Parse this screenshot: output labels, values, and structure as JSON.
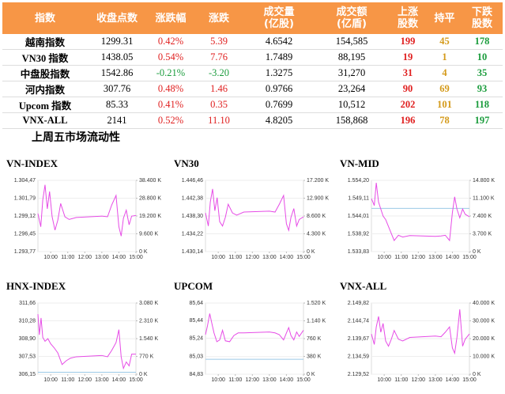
{
  "table": {
    "header": [
      [
        "指数"
      ],
      [
        "收盘点数"
      ],
      [
        "涨跌幅"
      ],
      [
        "涨跌"
      ],
      [
        "成交量",
        "(亿股)"
      ],
      [
        "成交额",
        "(亿盾)"
      ],
      [
        "上涨",
        "股数"
      ],
      [
        "持平"
      ],
      [
        "下跌",
        "股数"
      ]
    ],
    "rows": [
      [
        "越南指数",
        "1299.31",
        "0.42%",
        "5.39",
        "4.6542",
        "154,585",
        "199",
        "45",
        "178"
      ],
      [
        "VN30 指数",
        "1438.05",
        "0.54%",
        "7.76",
        "1.7489",
        "88,195",
        "19",
        "1",
        "10"
      ],
      [
        "中盘股指数",
        "1542.86",
        "-0.21%",
        "-3.20",
        "1.3275",
        "31,270",
        "31",
        "4",
        "35"
      ],
      [
        "河内指数",
        "307.76",
        "0.48%",
        "1.46",
        "0.9766",
        "23,264",
        "90",
        "69",
        "93"
      ],
      [
        "Upcom 指数",
        "85.33",
        "0.41%",
        "0.35",
        "0.7699",
        "10,512",
        "202",
        "101",
        "118"
      ],
      [
        "VNX-ALL",
        "2141",
        "0.52%",
        "11.10",
        "4.8205",
        "158,868",
        "196",
        "78",
        "197"
      ]
    ],
    "header_color": "#f79646",
    "up_color": "#e02020",
    "down_color": "#1a9c3c",
    "flat_color": "#d49a1a"
  },
  "heading": "上周五市场流动性",
  "chart_data": [
    {
      "type": "line",
      "title": "VN-INDEX",
      "color": "#e64ce6",
      "xlim": [
        555,
        900
      ],
      "ylim": [
        1293.77,
        1304.47
      ],
      "y2lim": [
        0,
        38400
      ],
      "x": [
        555,
        565,
        572,
        580,
        588,
        596,
        605,
        615,
        625,
        635,
        650,
        665,
        690,
        780,
        800,
        815,
        830,
        840,
        848,
        856,
        866,
        876,
        885,
        900
      ],
      "values": [
        1299.5,
        1297.5,
        1301.5,
        1303.8,
        1300.2,
        1302.8,
        1299,
        1297,
        1298.5,
        1301,
        1299,
        1298.6,
        1298.9,
        1299.1,
        1299,
        1300.8,
        1302.2,
        1297.5,
        1296.1,
        1298.8,
        1300,
        1297.8,
        1299.1,
        1299.2
      ],
      "yticks": [
        {
          "value": 1293.77,
          "label": "1.293,77"
        },
        {
          "value": 1296.45,
          "label": "1.296,45"
        },
        {
          "value": 1299.12,
          "label": "1.299,12"
        },
        {
          "value": 1301.79,
          "label": "1.301,79"
        },
        {
          "value": 1304.47,
          "label": "1.304,47"
        }
      ],
      "y2ticks": [
        {
          "value": 0,
          "label": "0 K"
        },
        {
          "value": 9600,
          "label": "9.600 K"
        },
        {
          "value": 19200,
          "label": "19.200 K"
        },
        {
          "value": 28800,
          "label": "28.800 K"
        },
        {
          "value": 38400,
          "label": "38.400 K"
        }
      ],
      "xticks": [
        {
          "value": 600,
          "label": "10:00"
        },
        {
          "value": 660,
          "label": "11:00"
        },
        {
          "value": 720,
          "label": "12:00"
        },
        {
          "value": 780,
          "label": "13:00"
        },
        {
          "value": 840,
          "label": "14:00"
        },
        {
          "value": 900,
          "label": "15:00"
        }
      ]
    },
    {
      "type": "line",
      "title": "VN30",
      "color": "#e64ce6",
      "xlim": [
        555,
        900
      ],
      "ylim": [
        1430.14,
        1446.46
      ],
      "y2lim": [
        0,
        17200
      ],
      "x": [
        555,
        565,
        572,
        580,
        588,
        596,
        605,
        615,
        625,
        635,
        650,
        665,
        690,
        780,
        800,
        815,
        830,
        840,
        848,
        856,
        866,
        876,
        885,
        900
      ],
      "values": [
        1439,
        1436,
        1441.5,
        1444.5,
        1439.5,
        1442.5,
        1437,
        1436,
        1438,
        1441,
        1439,
        1438.5,
        1439.2,
        1439.4,
        1439.2,
        1441,
        1443,
        1436.5,
        1435,
        1438,
        1440,
        1436,
        1437.5,
        1438.1
      ],
      "yticks": [
        {
          "value": 1430.14,
          "label": "1.430,14"
        },
        {
          "value": 1434.22,
          "label": "1.434,22"
        },
        {
          "value": 1438.3,
          "label": "1.438,30"
        },
        {
          "value": 1442.38,
          "label": "1.442,38"
        },
        {
          "value": 1446.46,
          "label": "1.446,46"
        }
      ],
      "y2ticks": [
        {
          "value": 0,
          "label": "0 K"
        },
        {
          "value": 4300,
          "label": "4.300 K"
        },
        {
          "value": 8600,
          "label": "8.600 K"
        },
        {
          "value": 12900,
          "label": "12.900 K"
        },
        {
          "value": 17200,
          "label": "17.200 K"
        }
      ],
      "xticks": [
        {
          "value": 600,
          "label": "10:00"
        },
        {
          "value": 660,
          "label": "11:00"
        },
        {
          "value": 720,
          "label": "12:00"
        },
        {
          "value": 780,
          "label": "13:00"
        },
        {
          "value": 840,
          "label": "14:00"
        },
        {
          "value": 900,
          "label": "15:00"
        }
      ]
    },
    {
      "type": "line",
      "title": "VN-MID",
      "color": "#e64ce6",
      "xlim": [
        555,
        900
      ],
      "ylim": [
        1533.83,
        1554.2
      ],
      "y2lim": [
        0,
        14800
      ],
      "x": [
        555,
        565,
        572,
        580,
        588,
        596,
        605,
        615,
        625,
        635,
        650,
        665,
        690,
        780,
        800,
        815,
        830,
        840,
        848,
        856,
        866,
        876,
        885,
        900
      ],
      "values": [
        1549,
        1547,
        1553.5,
        1548,
        1546,
        1544,
        1543,
        1541,
        1539,
        1537,
        1538.5,
        1538,
        1538.4,
        1538.2,
        1538.3,
        1538.5,
        1537,
        1545,
        1549.5,
        1546,
        1543.5,
        1546,
        1544.5,
        1543.8
      ],
      "reference": 1546.2,
      "yticks": [
        {
          "value": 1533.83,
          "label": "1.533,83"
        },
        {
          "value": 1538.92,
          "label": "1.538,92"
        },
        {
          "value": 1544.01,
          "label": "1.544,01"
        },
        {
          "value": 1549.11,
          "label": "1.549,11"
        },
        {
          "value": 1554.2,
          "label": "1.554,20"
        }
      ],
      "y2ticks": [
        {
          "value": 0,
          "label": "0 K"
        },
        {
          "value": 3700,
          "label": "3.700 K"
        },
        {
          "value": 7400,
          "label": "7.400 K"
        },
        {
          "value": 11100,
          "label": "11.100 K"
        },
        {
          "value": 14800,
          "label": "14.800 K"
        }
      ],
      "xticks": [
        {
          "value": 600,
          "label": "10:00"
        },
        {
          "value": 660,
          "label": "11:00"
        },
        {
          "value": 720,
          "label": "12:00"
        },
        {
          "value": 780,
          "label": "13:00"
        },
        {
          "value": 840,
          "label": "14:00"
        },
        {
          "value": 900,
          "label": "15:00"
        }
      ]
    },
    {
      "type": "line",
      "title": "HNX-INDEX",
      "color": "#e64ce6",
      "xlim": [
        555,
        900
      ],
      "ylim": [
        306.15,
        311.66
      ],
      "y2lim": [
        0,
        3080
      ],
      "x": [
        555,
        560,
        566,
        572,
        580,
        590,
        600,
        612,
        625,
        640,
        655,
        670,
        690,
        780,
        800,
        815,
        830,
        840,
        848,
        856,
        866,
        876,
        885,
        900
      ],
      "values": [
        310.8,
        309.2,
        310.5,
        309,
        308.7,
        308.9,
        308.5,
        308.2,
        307.8,
        306.9,
        307.2,
        307.4,
        307.5,
        307.6,
        307.5,
        308,
        308.6,
        309.6,
        307.5,
        306.6,
        307.1,
        306.8,
        307.7,
        307.7
      ],
      "reference": 306.3,
      "yticks": [
        {
          "value": 306.15,
          "label": "306,15"
        },
        {
          "value": 307.53,
          "label": "307,53"
        },
        {
          "value": 308.9,
          "label": "308,90"
        },
        {
          "value": 310.28,
          "label": "310,28"
        },
        {
          "value": 311.66,
          "label": "311,66"
        }
      ],
      "y2ticks": [
        {
          "value": 0,
          "label": "0 K"
        },
        {
          "value": 770,
          "label": "770 K"
        },
        {
          "value": 1540,
          "label": "1.540 K"
        },
        {
          "value": 2310,
          "label": "2.310 K"
        },
        {
          "value": 3080,
          "label": "3.080 K"
        }
      ],
      "xticks": [
        {
          "value": 600,
          "label": "10:00"
        },
        {
          "value": 660,
          "label": "11:00"
        },
        {
          "value": 720,
          "label": "12:00"
        },
        {
          "value": 780,
          "label": "13:00"
        },
        {
          "value": 840,
          "label": "14:00"
        },
        {
          "value": 900,
          "label": "15:00"
        }
      ]
    },
    {
      "type": "line",
      "title": "UPCOM",
      "color": "#e64ce6",
      "xlim": [
        555,
        900
      ],
      "ylim": [
        84.83,
        85.64
      ],
      "y2lim": [
        0,
        1520
      ],
      "x": [
        555,
        562,
        570,
        578,
        585,
        595,
        605,
        615,
        625,
        640,
        655,
        670,
        690,
        780,
        800,
        815,
        830,
        840,
        848,
        856,
        866,
        876,
        885,
        900
      ],
      "values": [
        85.28,
        85.38,
        85.52,
        85.4,
        85.3,
        85.2,
        85.22,
        85.33,
        85.21,
        85.2,
        85.27,
        85.3,
        85.3,
        85.31,
        85.3,
        85.28,
        85.22,
        85.3,
        85.36,
        85.27,
        85.22,
        85.31,
        85.26,
        85.33
      ],
      "reference": 85.0,
      "yticks": [
        {
          "value": 84.83,
          "label": "84,83"
        },
        {
          "value": 85.03,
          "label": "85,03"
        },
        {
          "value": 85.24,
          "label": "85,24"
        },
        {
          "value": 85.44,
          "label": "85,44"
        },
        {
          "value": 85.64,
          "label": "85,64"
        }
      ],
      "y2ticks": [
        {
          "value": 0,
          "label": "0 K"
        },
        {
          "value": 380,
          "label": "380 K"
        },
        {
          "value": 760,
          "label": "760 K"
        },
        {
          "value": 1140,
          "label": "1.140 K"
        },
        {
          "value": 1520,
          "label": "1.520 K"
        }
      ],
      "xticks": [
        {
          "value": 600,
          "label": "10:00"
        },
        {
          "value": 660,
          "label": "11:00"
        },
        {
          "value": 720,
          "label": "12:00"
        },
        {
          "value": 780,
          "label": "13:00"
        },
        {
          "value": 840,
          "label": "14:00"
        },
        {
          "value": 900,
          "label": "15:00"
        }
      ]
    },
    {
      "type": "line",
      "title": "VNX-ALL",
      "color": "#e64ce6",
      "xlim": [
        555,
        900
      ],
      "ylim": [
        2129.52,
        2149.82
      ],
      "y2lim": [
        0,
        40000
      ],
      "x": [
        555,
        565,
        572,
        580,
        588,
        596,
        605,
        615,
        625,
        635,
        650,
        665,
        690,
        780,
        800,
        815,
        830,
        840,
        848,
        856,
        866,
        876,
        885,
        900
      ],
      "values": [
        2141,
        2138,
        2143,
        2146,
        2141.5,
        2144,
        2139,
        2137.5,
        2139.5,
        2142,
        2139.5,
        2139,
        2140,
        2140.4,
        2140.2,
        2141.5,
        2143,
        2137,
        2135.5,
        2140,
        2148,
        2137.5,
        2139.5,
        2141
      ],
      "yticks": [
        {
          "value": 2129.52,
          "label": "2.129,52"
        },
        {
          "value": 2134.59,
          "label": "2.134,59"
        },
        {
          "value": 2139.67,
          "label": "2.139,67"
        },
        {
          "value": 2144.74,
          "label": "2.144,74"
        },
        {
          "value": 2149.82,
          "label": "2.149,82"
        }
      ],
      "y2ticks": [
        {
          "value": 0,
          "label": "0 K"
        },
        {
          "value": 10000,
          "label": "10.000 K"
        },
        {
          "value": 20000,
          "label": "20.000 K"
        },
        {
          "value": 30000,
          "label": "30.000 K"
        },
        {
          "value": 40000,
          "label": "40.000 K"
        }
      ],
      "xticks": [
        {
          "value": 600,
          "label": "10:00"
        },
        {
          "value": 660,
          "label": "11:00"
        },
        {
          "value": 720,
          "label": "12:00"
        },
        {
          "value": 780,
          "label": "13:00"
        },
        {
          "value": 840,
          "label": "14:00"
        },
        {
          "value": 900,
          "label": "15:00"
        }
      ]
    }
  ]
}
